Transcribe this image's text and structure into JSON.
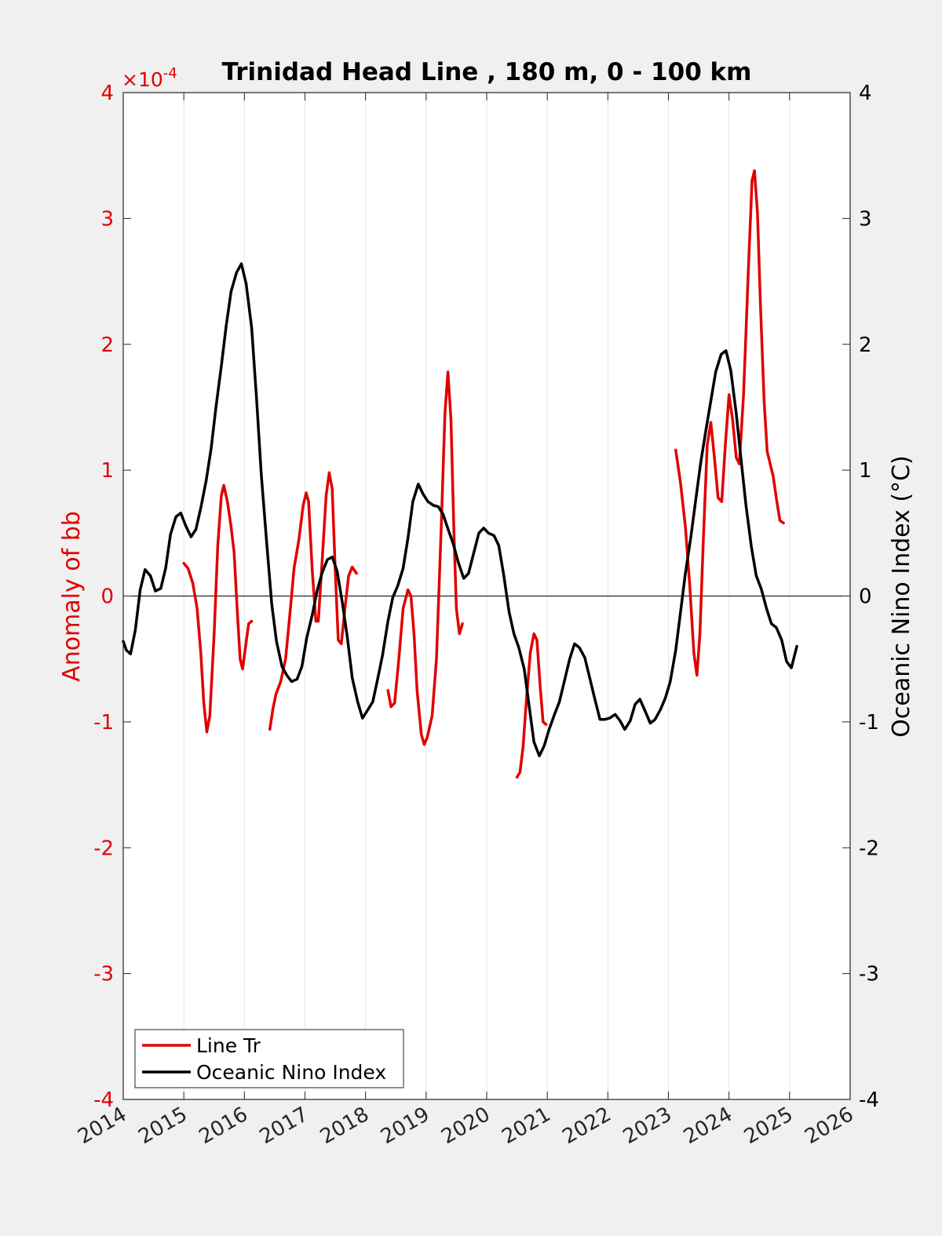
{
  "chart_data": {
    "type": "line",
    "title": "Trinidad Head Line , 180 m, 0 - 100 km",
    "xlabel": "",
    "x_tick_labels": [
      "2014",
      "2015",
      "2016",
      "2017",
      "2018",
      "2019",
      "2020",
      "2021",
      "2022",
      "2023",
      "2024",
      "2025",
      "2026"
    ],
    "xlim": [
      2014,
      2026
    ],
    "left_axis": {
      "label": "Anomaly of bb",
      "exponent_label": "×10",
      "exponent_power": "-4",
      "ylim": [
        -4,
        4
      ],
      "tick_labels": [
        "-4",
        "-3",
        "-2",
        "-1",
        "0",
        "1",
        "2",
        "3",
        "4"
      ],
      "color": "#e00000"
    },
    "right_axis": {
      "label": "Oceanic Nino Index (°C)",
      "ylim": [
        -4,
        4
      ],
      "tick_labels": [
        "-4",
        "-3",
        "-2",
        "-1",
        "0",
        "1",
        "2",
        "3",
        "4"
      ],
      "color": "#000000"
    },
    "grid": "vertical",
    "legend_placement": "bottom-left",
    "series": [
      {
        "name": "Line Tr",
        "axis": "left",
        "color": "#e00000",
        "segments": [
          [
            [
              2015.0,
              0.26
            ],
            [
              2015.07,
              0.22
            ],
            [
              2015.15,
              0.1
            ],
            [
              2015.22,
              -0.1
            ],
            [
              2015.28,
              -0.45
            ],
            [
              2015.33,
              -0.85
            ],
            [
              2015.38,
              -1.08
            ],
            [
              2015.43,
              -0.95
            ],
            [
              2015.5,
              -0.3
            ],
            [
              2015.56,
              0.4
            ],
            [
              2015.62,
              0.8
            ],
            [
              2015.66,
              0.88
            ],
            [
              2015.72,
              0.75
            ],
            [
              2015.78,
              0.55
            ],
            [
              2015.83,
              0.35
            ],
            [
              2015.88,
              -0.1
            ],
            [
              2015.93,
              -0.5
            ],
            [
              2015.97,
              -0.58
            ],
            [
              2016.02,
              -0.4
            ],
            [
              2016.07,
              -0.22
            ],
            [
              2016.12,
              -0.2
            ]
          ],
          [
            [
              2016.42,
              -1.06
            ],
            [
              2016.47,
              -0.9
            ],
            [
              2016.52,
              -0.78
            ],
            [
              2016.6,
              -0.68
            ],
            [
              2016.68,
              -0.5
            ],
            [
              2016.75,
              -0.15
            ],
            [
              2016.82,
              0.22
            ],
            [
              2016.9,
              0.45
            ],
            [
              2016.97,
              0.72
            ],
            [
              2017.02,
              0.82
            ],
            [
              2017.06,
              0.75
            ],
            [
              2017.12,
              0.2
            ],
            [
              2017.18,
              -0.2
            ],
            [
              2017.22,
              -0.2
            ],
            [
              2017.28,
              0.25
            ],
            [
              2017.35,
              0.8
            ],
            [
              2017.4,
              0.98
            ],
            [
              2017.45,
              0.85
            ],
            [
              2017.5,
              0.2
            ],
            [
              2017.55,
              -0.35
            ],
            [
              2017.6,
              -0.38
            ],
            [
              2017.66,
              -0.1
            ],
            [
              2017.72,
              0.16
            ],
            [
              2017.78,
              0.23
            ],
            [
              2017.85,
              0.18
            ]
          ],
          [
            [
              2018.37,
              -0.75
            ],
            [
              2018.42,
              -0.88
            ],
            [
              2018.48,
              -0.85
            ],
            [
              2018.55,
              -0.5
            ],
            [
              2018.62,
              -0.1
            ],
            [
              2018.7,
              0.05
            ],
            [
              2018.75,
              0.0
            ],
            [
              2018.8,
              -0.3
            ],
            [
              2018.85,
              -0.75
            ],
            [
              2018.92,
              -1.1
            ],
            [
              2018.97,
              -1.18
            ],
            [
              2019.02,
              -1.12
            ],
            [
              2019.1,
              -0.95
            ],
            [
              2019.17,
              -0.5
            ],
            [
              2019.25,
              0.55
            ],
            [
              2019.31,
              1.45
            ],
            [
              2019.36,
              1.78
            ],
            [
              2019.41,
              1.4
            ],
            [
              2019.46,
              0.5
            ],
            [
              2019.5,
              -0.1
            ],
            [
              2019.55,
              -0.3
            ],
            [
              2019.6,
              -0.22
            ]
          ],
          [
            [
              2020.5,
              -1.44
            ],
            [
              2020.55,
              -1.4
            ],
            [
              2020.6,
              -1.2
            ],
            [
              2020.66,
              -0.8
            ],
            [
              2020.72,
              -0.45
            ],
            [
              2020.78,
              -0.3
            ],
            [
              2020.83,
              -0.35
            ],
            [
              2020.88,
              -0.7
            ],
            [
              2020.93,
              -1.0
            ],
            [
              2020.98,
              -1.02
            ]
          ],
          [
            [
              2023.12,
              1.16
            ],
            [
              2023.2,
              0.9
            ],
            [
              2023.28,
              0.55
            ],
            [
              2023.35,
              0.1
            ],
            [
              2023.42,
              -0.45
            ],
            [
              2023.47,
              -0.63
            ],
            [
              2023.52,
              -0.3
            ],
            [
              2023.58,
              0.5
            ],
            [
              2023.64,
              1.2
            ],
            [
              2023.7,
              1.38
            ],
            [
              2023.76,
              1.1
            ],
            [
              2023.82,
              0.78
            ],
            [
              2023.88,
              0.75
            ],
            [
              2023.94,
              1.2
            ],
            [
              2024.0,
              1.6
            ],
            [
              2024.06,
              1.4
            ],
            [
              2024.12,
              1.1
            ],
            [
              2024.17,
              1.05
            ],
            [
              2024.24,
              1.6
            ],
            [
              2024.32,
              2.6
            ],
            [
              2024.38,
              3.3
            ],
            [
              2024.42,
              3.38
            ],
            [
              2024.47,
              3.05
            ],
            [
              2024.52,
              2.3
            ],
            [
              2024.58,
              1.55
            ],
            [
              2024.63,
              1.15
            ],
            [
              2024.68,
              1.05
            ],
            [
              2024.73,
              0.95
            ],
            [
              2024.78,
              0.78
            ],
            [
              2024.84,
              0.6
            ],
            [
              2024.9,
              0.58
            ]
          ]
        ]
      },
      {
        "name": "Oceanic Nino Index",
        "axis": "right",
        "color": "#000000",
        "segments": [
          [
            [
              2014.0,
              -0.36
            ],
            [
              2014.05,
              -0.43
            ],
            [
              2014.12,
              -0.46
            ],
            [
              2014.2,
              -0.27
            ],
            [
              2014.28,
              0.05
            ],
            [
              2014.36,
              0.21
            ],
            [
              2014.45,
              0.16
            ],
            [
              2014.53,
              0.04
            ],
            [
              2014.62,
              0.06
            ],
            [
              2014.7,
              0.22
            ],
            [
              2014.78,
              0.49
            ],
            [
              2014.87,
              0.63
            ],
            [
              2014.95,
              0.66
            ],
            [
              2015.03,
              0.56
            ],
            [
              2015.12,
              0.47
            ],
            [
              2015.2,
              0.53
            ],
            [
              2015.28,
              0.7
            ],
            [
              2015.37,
              0.92
            ],
            [
              2015.45,
              1.17
            ],
            [
              2015.53,
              1.5
            ],
            [
              2015.62,
              1.83
            ],
            [
              2015.7,
              2.15
            ],
            [
              2015.78,
              2.42
            ],
            [
              2015.87,
              2.57
            ],
            [
              2015.95,
              2.64
            ],
            [
              2016.03,
              2.48
            ],
            [
              2016.12,
              2.13
            ],
            [
              2016.2,
              1.57
            ],
            [
              2016.28,
              0.96
            ],
            [
              2016.37,
              0.41
            ],
            [
              2016.45,
              -0.06
            ],
            [
              2016.53,
              -0.36
            ],
            [
              2016.62,
              -0.56
            ],
            [
              2016.7,
              -0.63
            ],
            [
              2016.78,
              -0.68
            ],
            [
              2016.87,
              -0.66
            ],
            [
              2016.95,
              -0.56
            ],
            [
              2017.03,
              -0.33
            ],
            [
              2017.12,
              -0.15
            ],
            [
              2017.2,
              0.04
            ],
            [
              2017.28,
              0.18
            ],
            [
              2017.37,
              0.29
            ],
            [
              2017.45,
              0.31
            ],
            [
              2017.53,
              0.2
            ],
            [
              2017.62,
              -0.06
            ],
            [
              2017.7,
              -0.33
            ],
            [
              2017.78,
              -0.65
            ],
            [
              2017.87,
              -0.84
            ],
            [
              2017.95,
              -0.97
            ],
            [
              2018.03,
              -0.91
            ],
            [
              2018.12,
              -0.84
            ],
            [
              2018.2,
              -0.66
            ],
            [
              2018.28,
              -0.47
            ],
            [
              2018.37,
              -0.2
            ],
            [
              2018.45,
              -0.01
            ],
            [
              2018.53,
              0.08
            ],
            [
              2018.62,
              0.22
            ],
            [
              2018.7,
              0.46
            ],
            [
              2018.78,
              0.75
            ],
            [
              2018.87,
              0.89
            ],
            [
              2018.95,
              0.81
            ],
            [
              2019.03,
              0.75
            ],
            [
              2019.12,
              0.72
            ],
            [
              2019.2,
              0.71
            ],
            [
              2019.28,
              0.65
            ],
            [
              2019.37,
              0.52
            ],
            [
              2019.45,
              0.41
            ],
            [
              2019.53,
              0.27
            ],
            [
              2019.62,
              0.14
            ],
            [
              2019.7,
              0.18
            ],
            [
              2019.78,
              0.33
            ],
            [
              2019.87,
              0.5
            ],
            [
              2019.95,
              0.54
            ],
            [
              2020.03,
              0.5
            ],
            [
              2020.12,
              0.48
            ],
            [
              2020.2,
              0.4
            ],
            [
              2020.28,
              0.17
            ],
            [
              2020.37,
              -0.13
            ],
            [
              2020.45,
              -0.3
            ],
            [
              2020.53,
              -0.41
            ],
            [
              2020.62,
              -0.58
            ],
            [
              2020.7,
              -0.87
            ],
            [
              2020.78,
              -1.16
            ],
            [
              2020.87,
              -1.27
            ],
            [
              2020.95,
              -1.19
            ],
            [
              2021.03,
              -1.06
            ],
            [
              2021.12,
              -0.94
            ],
            [
              2021.2,
              -0.84
            ],
            [
              2021.28,
              -0.68
            ],
            [
              2021.37,
              -0.5
            ],
            [
              2021.45,
              -0.38
            ],
            [
              2021.53,
              -0.41
            ],
            [
              2021.62,
              -0.49
            ],
            [
              2021.7,
              -0.65
            ],
            [
              2021.78,
              -0.81
            ],
            [
              2021.87,
              -0.98
            ],
            [
              2021.95,
              -0.98
            ],
            [
              2022.03,
              -0.97
            ],
            [
              2022.12,
              -0.94
            ],
            [
              2022.2,
              -0.99
            ],
            [
              2022.28,
              -1.06
            ],
            [
              2022.37,
              -0.99
            ],
            [
              2022.45,
              -0.86
            ],
            [
              2022.53,
              -0.82
            ],
            [
              2022.62,
              -0.92
            ],
            [
              2022.7,
              -1.01
            ],
            [
              2022.78,
              -0.98
            ],
            [
              2022.87,
              -0.9
            ],
            [
              2022.95,
              -0.81
            ],
            [
              2023.03,
              -0.68
            ],
            [
              2023.12,
              -0.43
            ],
            [
              2023.2,
              -0.13
            ],
            [
              2023.28,
              0.18
            ],
            [
              2023.37,
              0.47
            ],
            [
              2023.45,
              0.76
            ],
            [
              2023.53,
              1.05
            ],
            [
              2023.62,
              1.32
            ],
            [
              2023.7,
              1.55
            ],
            [
              2023.78,
              1.78
            ],
            [
              2023.87,
              1.92
            ],
            [
              2023.95,
              1.95
            ],
            [
              2024.03,
              1.79
            ],
            [
              2024.12,
              1.45
            ],
            [
              2024.2,
              1.08
            ],
            [
              2024.28,
              0.72
            ],
            [
              2024.37,
              0.39
            ],
            [
              2024.45,
              0.16
            ],
            [
              2024.53,
              0.06
            ],
            [
              2024.62,
              -0.1
            ],
            [
              2024.7,
              -0.22
            ],
            [
              2024.78,
              -0.25
            ],
            [
              2024.87,
              -0.35
            ],
            [
              2024.95,
              -0.52
            ],
            [
              2025.03,
              -0.57
            ],
            [
              2025.12,
              -0.4
            ]
          ]
        ]
      }
    ]
  }
}
